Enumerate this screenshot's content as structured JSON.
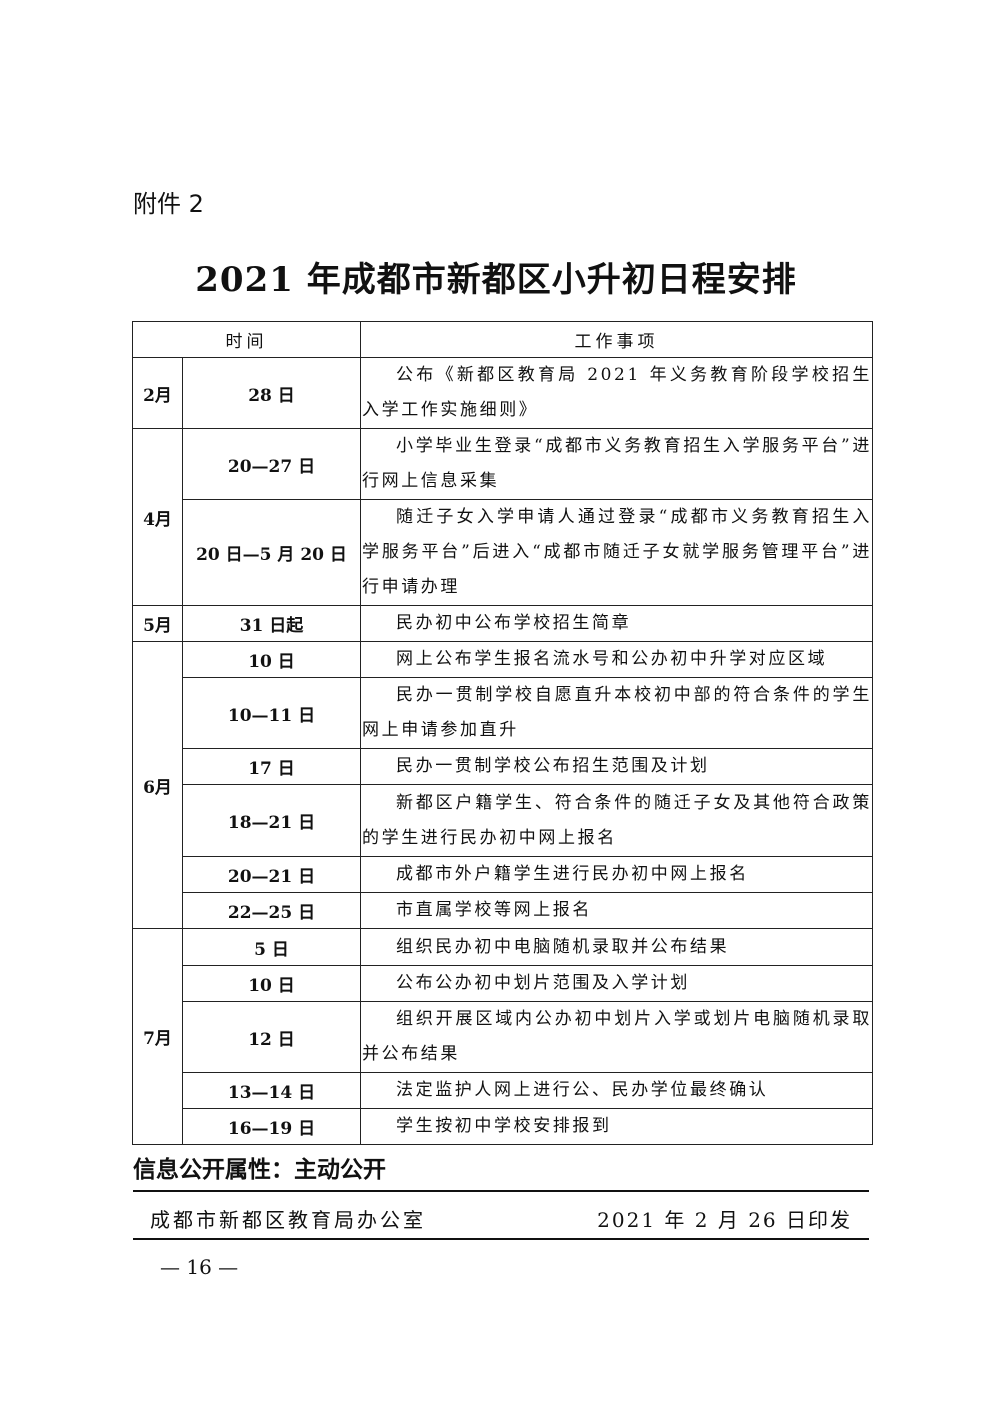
{
  "attachment": "附件 2",
  "title": "2021 年成都市新都区小升初日程安排",
  "table": {
    "headers": [
      "时间",
      "工作事项"
    ],
    "groups": [
      {
        "month": "2月",
        "rows": [
          {
            "date": "28 日",
            "task": "公布《新都区教育局 2021 年义务教育阶段学校招生入学工作实施细则》"
          }
        ]
      },
      {
        "month": "4月",
        "rows": [
          {
            "date": "20—27 日",
            "task": "小学毕业生登录“成都市义务教育招生入学服务平台”进行网上信息采集"
          },
          {
            "date": "20 日—5 月 20 日",
            "task": "随迁子女入学申请人通过登录“成都市义务教育招生入学服务平台”后进入“成都市随迁子女就学服务管理平台”进行申请办理"
          }
        ]
      },
      {
        "month": "5月",
        "rows": [
          {
            "date": "31 日起",
            "task": "民办初中公布学校招生简章"
          }
        ]
      },
      {
        "month": "6月",
        "rows": [
          {
            "date": "10 日",
            "task": "网上公布学生报名流水号和公办初中升学对应区域"
          },
          {
            "date": "10—11 日",
            "task": "民办一贯制学校自愿直升本校初中部的符合条件的学生网上申请参加直升"
          },
          {
            "date": "17 日",
            "task": "民办一贯制学校公布招生范围及计划"
          },
          {
            "date": "18—21 日",
            "task": "新都区户籍学生、符合条件的随迁子女及其他符合政策的学生进行民办初中网上报名"
          },
          {
            "date": "20—21 日",
            "task": "成都市外户籍学生进行民办初中网上报名"
          },
          {
            "date": "22—25 日",
            "task": "市直属学校等网上报名"
          }
        ]
      },
      {
        "month": "7月",
        "rows": [
          {
            "date": "5 日",
            "task": "组织民办初中电脑随机录取并公布结果"
          },
          {
            "date": "10 日",
            "task": "公布公办初中划片范围及入学计划"
          },
          {
            "date": "12 日",
            "task": "组织开展区域内公办初中划片入学或划片电脑随机录取并公布结果"
          },
          {
            "date": "13—14 日",
            "task": "法定监护人网上进行公、民办学位最终确认"
          },
          {
            "date": "16—19 日",
            "task": "学生按初中学校安排报到"
          }
        ]
      }
    ]
  },
  "footer": {
    "info_attribute": "信息公开属性：主动公开",
    "issuer": "成都市新都区教育局办公室",
    "issue_date": "2021 年 2 月 26 日印发",
    "page_number": "— 16 —"
  }
}
